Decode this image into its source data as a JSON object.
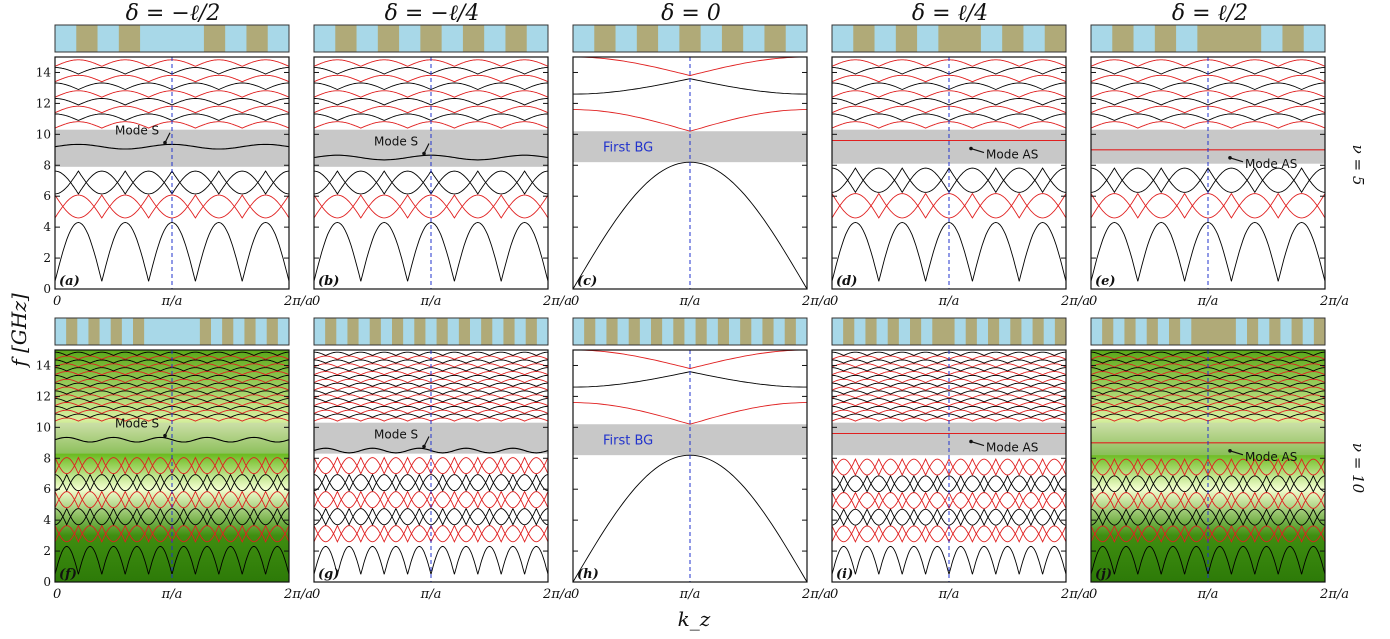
{
  "figure": {
    "ylabel": "f [GHz]",
    "xlabel": "k_z",
    "x_ticks": [
      "0",
      "π/a",
      "2π/a"
    ],
    "y_ticks": [
      "0",
      "2",
      "4",
      "6",
      "8",
      "10",
      "12",
      "14"
    ],
    "column_titles": [
      "δ = −ℓ/2",
      "δ = −ℓ/4",
      "δ = 0",
      "δ = ℓ/4",
      "δ = ℓ/2"
    ],
    "row_labels": [
      "ν = 5",
      "ν = 10"
    ]
  },
  "colors": {
    "band_black": "#000000",
    "band_red": "#e02020",
    "gap_gray": "#c8c8c8",
    "guide_blue": "#2233cc",
    "cell_tan": "#b0aa78",
    "cell_blue": "#a8d8e8",
    "field_green": "#4fa010"
  },
  "chart_data": [
    {
      "panel": "(a)",
      "row": 0,
      "col": 0,
      "type": "line",
      "title": "δ = −ℓ/2",
      "ylim": [
        0,
        15
      ],
      "xlim": [
        0,
        2
      ],
      "gap": [
        7.9,
        10.3
      ],
      "gap_label": "",
      "mode": {
        "label": "Mode S",
        "freq": 9.2,
        "flat": false
      },
      "lowest_band_max": 4.3,
      "lowest_band_arches": 5,
      "heatmap": false
    },
    {
      "panel": "(b)",
      "row": 0,
      "col": 1,
      "type": "line",
      "title": "δ = −ℓ/4",
      "ylim": [
        0,
        15
      ],
      "xlim": [
        0,
        2
      ],
      "gap": [
        7.9,
        10.3
      ],
      "gap_label": "",
      "mode": {
        "label": "Mode S",
        "freq": 8.5,
        "flat": false
      },
      "lowest_band_max": 4.3,
      "lowest_band_arches": 5,
      "heatmap": false
    },
    {
      "panel": "(c)",
      "row": 0,
      "col": 2,
      "type": "line",
      "title": "δ = 0",
      "ylim": [
        0,
        15
      ],
      "xlim": [
        0,
        2
      ],
      "gap": [
        8.2,
        10.2
      ],
      "gap_label": "First BG",
      "mode": null,
      "lowest_band_max": 8.2,
      "lowest_band_arches": 1,
      "heatmap": false
    },
    {
      "panel": "(d)",
      "row": 0,
      "col": 3,
      "type": "line",
      "title": "δ = ℓ/4",
      "ylim": [
        0,
        15
      ],
      "xlim": [
        0,
        2
      ],
      "gap": [
        8.1,
        10.3
      ],
      "gap_label": "",
      "mode": {
        "label": "Mode AS",
        "freq": 9.6,
        "flat": true
      },
      "lowest_band_max": 4.3,
      "lowest_band_arches": 5,
      "heatmap": false
    },
    {
      "panel": "(e)",
      "row": 0,
      "col": 4,
      "type": "line",
      "title": "δ = ℓ/2",
      "ylim": [
        0,
        15
      ],
      "xlim": [
        0,
        2
      ],
      "gap": [
        8.1,
        10.3
      ],
      "gap_label": "",
      "mode": {
        "label": "Mode AS",
        "freq": 9.0,
        "flat": true
      },
      "lowest_band_max": 4.3,
      "lowest_band_arches": 5,
      "heatmap": false
    },
    {
      "panel": "(f)",
      "row": 1,
      "col": 0,
      "type": "heatmap",
      "title": "",
      "ylim": [
        0,
        15
      ],
      "xlim": [
        0,
        2
      ],
      "gap": [
        8.3,
        10.3
      ],
      "gap_label": "",
      "mode": {
        "label": "Mode S",
        "freq": 9.2,
        "flat": false
      },
      "lowest_band_max": 2.3,
      "lowest_band_arches": 10,
      "heatmap": true
    },
    {
      "panel": "(g)",
      "row": 1,
      "col": 1,
      "type": "line",
      "title": "",
      "ylim": [
        0,
        15
      ],
      "xlim": [
        0,
        2
      ],
      "gap": [
        8.3,
        10.3
      ],
      "gap_label": "",
      "mode": {
        "label": "Mode S",
        "freq": 8.5,
        "flat": false
      },
      "lowest_band_max": 2.3,
      "lowest_band_arches": 10,
      "heatmap": false
    },
    {
      "panel": "(h)",
      "row": 1,
      "col": 2,
      "type": "line",
      "title": "",
      "ylim": [
        0,
        15
      ],
      "xlim": [
        0,
        2
      ],
      "gap": [
        8.2,
        10.2
      ],
      "gap_label": "First BG",
      "mode": null,
      "lowest_band_max": 8.2,
      "lowest_band_arches": 1,
      "heatmap": false
    },
    {
      "panel": "(i)",
      "row": 1,
      "col": 3,
      "type": "line",
      "title": "",
      "ylim": [
        0,
        15
      ],
      "xlim": [
        0,
        2
      ],
      "gap": [
        8.2,
        10.3
      ],
      "gap_label": "",
      "mode": {
        "label": "Mode AS",
        "freq": 9.6,
        "flat": true
      },
      "lowest_band_max": 2.3,
      "lowest_band_arches": 10,
      "heatmap": false
    },
    {
      "panel": "(j)",
      "row": 1,
      "col": 4,
      "type": "heatmap",
      "title": "",
      "ylim": [
        0,
        15
      ],
      "xlim": [
        0,
        2
      ],
      "gap": [
        8.2,
        10.3
      ],
      "gap_label": "",
      "mode": {
        "label": "Mode AS",
        "freq": 9.0,
        "flat": true
      },
      "lowest_band_max": 2.3,
      "lowest_band_arches": 10,
      "heatmap": true
    }
  ],
  "unit_cells": [
    {
      "row": 0,
      "col": 0,
      "pattern": "BTBTBBBTBTB"
    },
    {
      "row": 0,
      "col": 1,
      "pattern": "BTBTBTBTBTB"
    },
    {
      "row": 0,
      "col": 2,
      "pattern": "BTBTBTBTBTB"
    },
    {
      "row": 0,
      "col": 3,
      "pattern": "BTBTBTTBTBT"
    },
    {
      "row": 0,
      "col": 4,
      "pattern": "BTBTBTTTBTB"
    },
    {
      "row": 1,
      "col": 0,
      "pattern": "BTBTBTBTBBBBBTBTBTBTB"
    },
    {
      "row": 1,
      "col": 1,
      "pattern": "BTBTBTBTBTBTBTBTBTBTB"
    },
    {
      "row": 1,
      "col": 2,
      "pattern": "BTBTBTBTBTBTBTBTBTBTB"
    },
    {
      "row": 1,
      "col": 3,
      "pattern": "BTBTBTBTBTTBTBTBTBTBT"
    },
    {
      "row": 1,
      "col": 4,
      "pattern": "BTBTBTBTBTTTTBTBTBTBT"
    }
  ]
}
